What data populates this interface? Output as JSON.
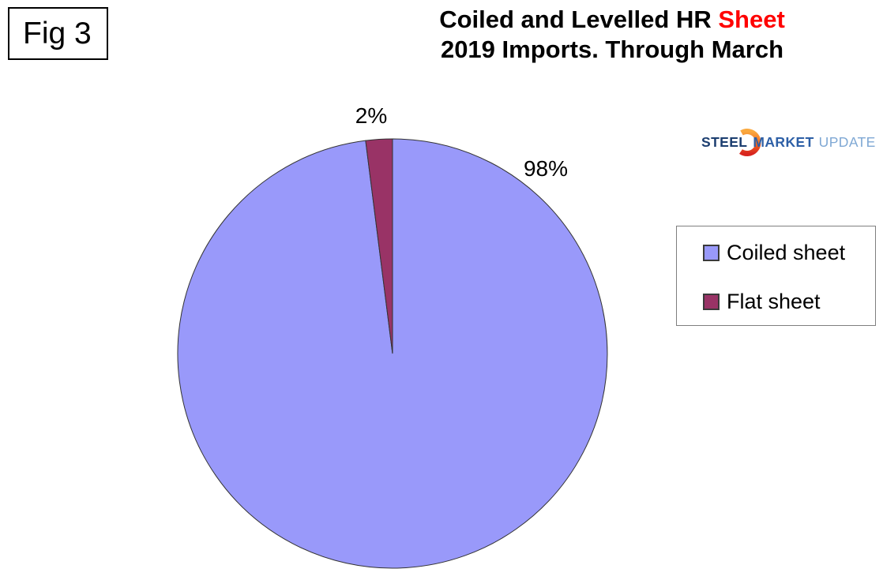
{
  "figure_label": "Fig 3",
  "title": {
    "line1_black": "Coiled and Levelled HR ",
    "line1_red": "Sheet",
    "line2": "2019 Imports. Through March",
    "red_color": "#FF0000"
  },
  "logo": {
    "word1": "STEEL",
    "word2": "MARKET",
    "word3": "UPDATE",
    "word1_color": "#1C3E70",
    "word2_color": "#2D5FA6",
    "word3_color": "#7FA8D4",
    "crescent_top_color": "#FAA93F",
    "crescent_mid_color": "#F26A21",
    "crescent_bottom_color": "#D8251F"
  },
  "legend": {
    "items": [
      {
        "label": "Coiled sheet",
        "color": "#9999FA"
      },
      {
        "label": "Flat sheet",
        "color": "#993366"
      }
    ]
  },
  "chart_data": {
    "type": "pie",
    "title": "Coiled and Levelled HR Sheet",
    "subtitle": "2019 Imports. Through March",
    "slices": [
      {
        "label": "Coiled sheet",
        "value": 98,
        "display": "98%",
        "color": "#9999FA"
      },
      {
        "label": "Flat sheet",
        "value": 2,
        "display": "2%",
        "color": "#993366"
      }
    ],
    "start_angle": "12 o'clock",
    "direction": "clockwise",
    "slice_outline_color": "#333333",
    "legend_position": "right",
    "data_labels": "percent, outside"
  }
}
